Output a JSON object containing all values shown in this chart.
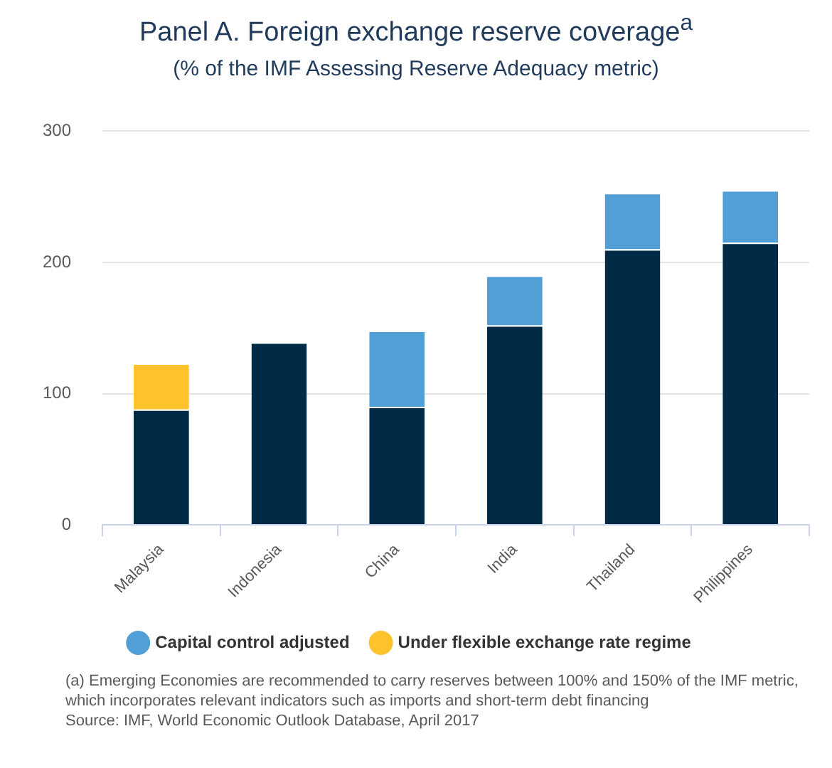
{
  "chart_data": {
    "type": "bar",
    "title": "Panel A. Foreign exchange reserve coverage$^{a}$",
    "subtitle": "(% of the IMF Assessing Reserve Adequacy metric)",
    "categories": [
      "Malaysia",
      "Indonesia",
      "China",
      "India",
      "Thailand",
      "Philippines"
    ],
    "series": [
      {
        "color": "#002a45",
        "values": [
          88,
          139,
          90,
          152,
          210,
          215
        ]
      },
      {
        "name": "Capital control adjusted",
        "color": "#529ed6",
        "values": [
          null,
          null,
          58,
          38,
          43,
          40
        ]
      },
      {
        "name": "Under flexible exchange rate regime",
        "color": "#fec22d",
        "values": [
          35,
          null,
          null,
          null,
          null,
          null
        ]
      }
    ],
    "stacked": true,
    "ylim": [
      0,
      300
    ],
    "yticks": [
      0,
      100,
      200,
      300
    ],
    "grid": "y",
    "legend": "bottom",
    "annotations": [
      "(a) Emerging Economies are recommended to carry reserves between 100% and 150% of the IMF metric, which incorporates relevant indicators such as imports and short-term debt financing",
      "Source: IMF, World Economic Outlook Database, April 2017"
    ]
  }
}
